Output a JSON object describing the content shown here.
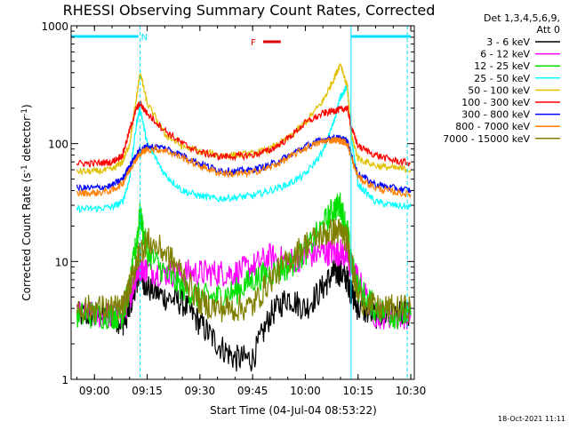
{
  "chart_data": {
    "type": "line",
    "title": "RHESSI Observing Summary Count Rates, Corrected",
    "xlabel": "Start Time (04-Jul-04 08:53:22)",
    "ylabel_main": "Corrected Count Rate (s",
    "ylabel_sup1": "-1",
    "ylabel_mid": " detector",
    "ylabel_sup2": "-1",
    "ylabel_end": ")",
    "yscale": "log",
    "ylim": [
      1,
      1000
    ],
    "xlim": [
      "08:53:22",
      "10:31:00"
    ],
    "x_ticks": [
      "09:00",
      "09:15",
      "09:30",
      "09:45",
      "10:00",
      "10:15",
      "10:30"
    ],
    "y_ticks": [
      "1",
      "10",
      "100",
      "1000"
    ],
    "legend_header": [
      "Det 1,3,4,5,6,9,",
      "Att 0"
    ],
    "legend_position": "right",
    "timestamp": "18-Oct-2021 11:11",
    "annotations": {
      "night_label": "N",
      "flare_label": "F",
      "night_color": "#00e0ff",
      "flare_color": "#e00000",
      "night_bars": [
        [
          "08:53:22",
          "09:12:30"
        ],
        [
          "10:13:00",
          "10:30:00"
        ]
      ],
      "flare_bar": [
        "09:48:00",
        "09:53:00"
      ],
      "vertical_lines": [
        "08:53:22",
        "09:13:00",
        "10:13:00",
        "10:29:00"
      ]
    },
    "x": [
      "08:55",
      "09:00",
      "09:05",
      "09:08",
      "09:10",
      "09:12",
      "09:13",
      "09:15",
      "09:20",
      "09:25",
      "09:30",
      "09:35",
      "09:40",
      "09:45",
      "09:50",
      "09:55",
      "10:00",
      "10:05",
      "10:08",
      "10:10",
      "10:12",
      "10:13",
      "10:15",
      "10:20",
      "10:25",
      "10:30"
    ],
    "series": [
      {
        "name": "3 - 6 keV",
        "color": "#000000",
        "values": [
          3.5,
          3.5,
          3.5,
          3.0,
          4.0,
          7.0,
          8.0,
          6.0,
          5.0,
          4.5,
          3.0,
          2.0,
          1.5,
          1.5,
          3.5,
          5.0,
          4.0,
          6.0,
          8.0,
          8.0,
          7.0,
          5.5,
          4.0,
          3.5,
          3.5,
          3.5
        ]
      },
      {
        "name": "6 - 12 keV",
        "color": "#ff00ff",
        "values": [
          3.5,
          3.5,
          3.5,
          3.5,
          5.0,
          8.0,
          9.0,
          8.5,
          8.0,
          8.0,
          8.0,
          8.0,
          8.0,
          9.0,
          11.0,
          10.0,
          11.0,
          12.0,
          12.0,
          12.0,
          11.0,
          9.0,
          7.0,
          3.5,
          3.5,
          3.5
        ]
      },
      {
        "name": "12 - 25 keV",
        "color": "#00e000",
        "values": [
          3.5,
          3.5,
          3.5,
          3.5,
          6.0,
          15.0,
          25.0,
          12.0,
          8.0,
          6.0,
          5.0,
          5.0,
          5.5,
          7.0,
          8.0,
          9.0,
          12.0,
          20.0,
          28.0,
          30.0,
          18.0,
          10.0,
          6.0,
          4.0,
          3.5,
          3.5
        ]
      },
      {
        "name": "25 - 50 keV",
        "color": "#00ffff",
        "values": [
          28,
          28,
          29,
          32,
          50,
          150,
          200,
          100,
          55,
          40,
          36,
          34,
          35,
          36,
          40,
          45,
          55,
          85,
          150,
          250,
          310,
          120,
          45,
          32,
          30,
          29
        ]
      },
      {
        "name": "50 - 100 keV",
        "color": "#e0c000",
        "values": [
          58,
          58,
          60,
          70,
          100,
          250,
          400,
          220,
          120,
          95,
          85,
          80,
          80,
          82,
          90,
          110,
          150,
          230,
          350,
          480,
          300,
          120,
          75,
          65,
          62,
          60
        ]
      },
      {
        "name": "100 - 300 keV",
        "color": "#ff0000",
        "values": [
          68,
          68,
          70,
          80,
          130,
          200,
          220,
          180,
          130,
          100,
          85,
          78,
          78,
          80,
          88,
          110,
          150,
          180,
          190,
          195,
          200,
          140,
          95,
          80,
          72,
          68
        ]
      },
      {
        "name": "300 - 800 keV",
        "color": "#0000ff",
        "values": [
          42,
          42,
          44,
          50,
          65,
          80,
          88,
          95,
          92,
          80,
          68,
          60,
          58,
          60,
          66,
          78,
          95,
          108,
          112,
          110,
          105,
          80,
          55,
          45,
          42,
          40
        ]
      },
      {
        "name": "800 - 7000 keV",
        "color": "#ff8000",
        "values": [
          38,
          38,
          40,
          46,
          60,
          75,
          82,
          90,
          88,
          76,
          65,
          57,
          55,
          57,
          63,
          75,
          92,
          104,
          108,
          106,
          100,
          76,
          52,
          42,
          39,
          37
        ]
      },
      {
        "name": "7000 - 15000 keV",
        "color": "#808000",
        "values": [
          4.0,
          4.0,
          4.0,
          4.0,
          6.0,
          10.0,
          12.0,
          15.0,
          12.0,
          8.0,
          4.5,
          4.0,
          4.0,
          4.2,
          7.0,
          10.0,
          14.0,
          17.0,
          18.0,
          18.0,
          15.0,
          10.0,
          5.0,
          4.0,
          4.0,
          4.0
        ]
      }
    ]
  }
}
